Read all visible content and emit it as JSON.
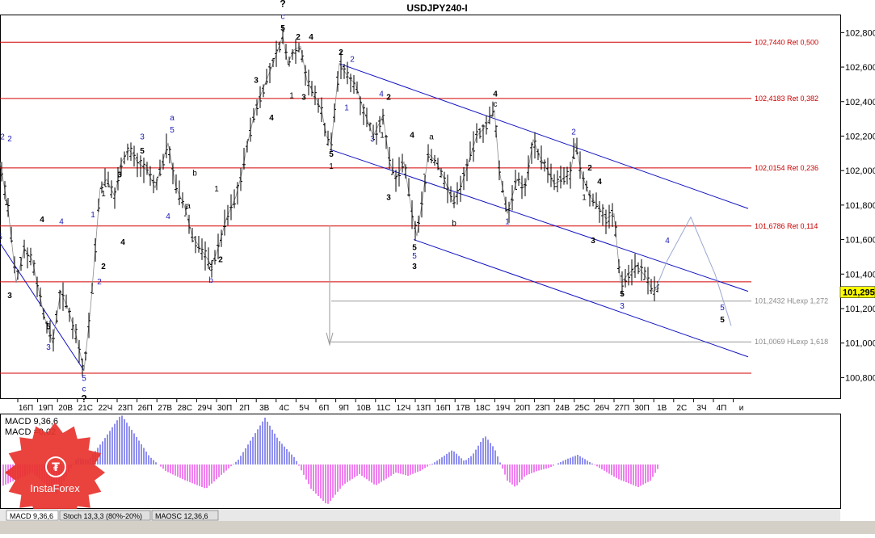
{
  "window": {
    "title": "USDJPY240-I",
    "macd_readout_1": "MACD 9,36,6",
    "macd_readout_2": "MACD =0,02",
    "watermark": "InstaForex",
    "tabs": [
      "MACD 9,36,6",
      "Stoch 13,3,3 (80%-20%)",
      "MAOSC 12,36,6"
    ],
    "active_tab": 0
  },
  "colors": {
    "fib_line": "#d40000",
    "fib_label": "#cc0000",
    "ext_line": "#9a9a9a",
    "ext_label": "#8a8a8a",
    "channel": "#1010c0",
    "wave_black": "#000000",
    "wave_blue": "#1a1ab4",
    "forecast": "#9aa8d0",
    "hist_pos": "#2020e0",
    "hist_neg": "#e000e0",
    "price_box": "#ffff00",
    "candle": "#000000"
  },
  "chart_data": {
    "type": "candlestick",
    "symbol": "USDJPY240-I",
    "ylim": [
      100.68,
      102.9
    ],
    "yticks": [
      "102,800",
      "102,600",
      "102,400",
      "102,200",
      "102,000",
      "101,800",
      "101,600",
      "101,400",
      "101,200",
      "101,000",
      "100,800"
    ],
    "ytick_values": [
      102.8,
      102.6,
      102.4,
      102.2,
      102.0,
      101.8,
      101.6,
      101.4,
      101.2,
      101.0,
      100.8
    ],
    "current_price": "101,295",
    "current_price_value": 101.295,
    "x_labels": [
      "16П",
      "19П",
      "20В",
      "21С",
      "22Ч",
      "23П",
      "26П",
      "27В",
      "28С",
      "29Ч",
      "30П",
      "2П",
      "3В",
      "4С",
      "5Ч",
      "6П",
      "9П",
      "10В",
      "11С",
      "12Ч",
      "13П",
      "16П",
      "17В",
      "18С",
      "19Ч",
      "20П",
      "23П",
      "24В",
      "25С",
      "26Ч",
      "27П",
      "30П",
      "1В",
      "2С",
      "3Ч",
      "4П",
      "и"
    ],
    "bar_count": 340,
    "price_path": [
      [
        0,
        102.05
      ],
      [
        10,
        101.78
      ],
      [
        20,
        101.35
      ],
      [
        30,
        101.55
      ],
      [
        40,
        101.48
      ],
      [
        55,
        101.15
      ],
      [
        65,
        101.0
      ],
      [
        75,
        101.3
      ],
      [
        84,
        101.2
      ],
      [
        94,
        101.05
      ],
      [
        104,
        100.84
      ],
      [
        112,
        101.2
      ],
      [
        118,
        101.55
      ],
      [
        124,
        101.9
      ],
      [
        132,
        101.95
      ],
      [
        142,
        101.85
      ],
      [
        150,
        102.05
      ],
      [
        160,
        102.12
      ],
      [
        170,
        102.05
      ],
      [
        182,
        102.0
      ],
      [
        192,
        101.9
      ],
      [
        208,
        102.16
      ],
      [
        218,
        101.9
      ],
      [
        228,
        101.8
      ],
      [
        238,
        101.62
      ],
      [
        248,
        101.55
      ],
      [
        262,
        101.45
      ],
      [
        270,
        101.55
      ],
      [
        280,
        101.72
      ],
      [
        292,
        101.85
      ],
      [
        300,
        102.0
      ],
      [
        306,
        102.15
      ],
      [
        316,
        102.35
      ],
      [
        326,
        102.48
      ],
      [
        338,
        102.62
      ],
      [
        350,
        102.78
      ],
      [
        356,
        102.62
      ],
      [
        364,
        102.7
      ],
      [
        372,
        102.72
      ],
      [
        380,
        102.52
      ],
      [
        388,
        102.45
      ],
      [
        398,
        102.35
      ],
      [
        404,
        102.2
      ],
      [
        410,
        102.15
      ],
      [
        420,
        102.62
      ],
      [
        430,
        102.55
      ],
      [
        440,
        102.5
      ],
      [
        450,
        102.35
      ],
      [
        462,
        102.2
      ],
      [
        474,
        102.32
      ],
      [
        482,
        102.05
      ],
      [
        490,
        101.95
      ],
      [
        500,
        102.05
      ],
      [
        510,
        101.75
      ],
      [
        516,
        101.62
      ],
      [
        522,
        101.8
      ],
      [
        530,
        102.1
      ],
      [
        540,
        102.05
      ],
      [
        550,
        101.95
      ],
      [
        560,
        101.82
      ],
      [
        570,
        101.9
      ],
      [
        580,
        102.05
      ],
      [
        590,
        102.2
      ],
      [
        600,
        102.25
      ],
      [
        612,
        102.35
      ],
      [
        618,
        102.0
      ],
      [
        628,
        101.75
      ],
      [
        640,
        101.95
      ],
      [
        650,
        101.9
      ],
      [
        660,
        102.18
      ],
      [
        668,
        102.08
      ],
      [
        676,
        102.02
      ],
      [
        686,
        101.92
      ],
      [
        696,
        101.95
      ],
      [
        706,
        101.98
      ],
      [
        712,
        102.16
      ],
      [
        720,
        101.98
      ],
      [
        730,
        101.85
      ],
      [
        740,
        101.8
      ],
      [
        750,
        101.72
      ],
      [
        760,
        101.75
      ],
      [
        768,
        101.35
      ],
      [
        778,
        101.4
      ],
      [
        788,
        101.45
      ],
      [
        800,
        101.38
      ],
      [
        808,
        101.3
      ],
      [
        816,
        101.32
      ]
    ],
    "fib_levels": [
      {
        "value": 102.744,
        "label": "102,7440 Ret 0,500"
      },
      {
        "value": 102.4183,
        "label": "102,4183 Ret 0,382"
      },
      {
        "value": 102.0154,
        "label": "102,0154 Ret 0,236"
      },
      {
        "value": 101.6786,
        "label": "101,6786 Ret 0,114"
      },
      {
        "value": 101.355,
        "label": ""
      },
      {
        "value": 100.825,
        "label": ""
      }
    ],
    "extension_levels": [
      {
        "value": 101.2432,
        "label": "101,2432 HLexp 1,272"
      },
      {
        "value": 101.0069,
        "label": "101,0069 HLexp 1,618"
      }
    ],
    "channel_lines": [
      {
        "x1": 420,
        "y1": 102.62,
        "x2": 926,
        "y2": 101.78
      },
      {
        "x1": 410,
        "y1": 102.12,
        "x2": 926,
        "y2": 101.3
      },
      {
        "x1": 512,
        "y1": 101.6,
        "x2": 926,
        "y2": 100.92
      },
      {
        "x1": 0,
        "y1": 101.58,
        "x2": 104,
        "y2": 100.84
      }
    ],
    "forecast_path": [
      [
        812,
        101.32
      ],
      [
        826,
        101.48
      ],
      [
        855,
        101.73
      ],
      [
        885,
        101.4
      ],
      [
        905,
        101.1
      ]
    ],
    "wave_labels": [
      {
        "text": "2",
        "x": 3,
        "y": 102.18,
        "c": "blue"
      },
      {
        "text": "2",
        "x": 12,
        "y": 102.17,
        "c": "blue"
      },
      {
        "text": "1",
        "x": 8,
        "y": 101.8,
        "c": "black"
      },
      {
        "text": "5",
        "x": 0,
        "y": 101.6,
        "c": "blue"
      },
      {
        "text": "3",
        "x": 12,
        "y": 101.26,
        "c": "black"
      },
      {
        "text": "4",
        "x": 52,
        "y": 101.7,
        "c": "black"
      },
      {
        "text": "4",
        "x": 76,
        "y": 101.69,
        "c": "blue"
      },
      {
        "text": "5",
        "x": 60,
        "y": 101.08,
        "c": "black"
      },
      {
        "text": "3",
        "x": 60,
        "y": 100.96,
        "c": "blue"
      },
      {
        "text": "5",
        "x": 104,
        "y": 100.78,
        "c": "blue"
      },
      {
        "text": "c",
        "x": 104,
        "y": 100.72,
        "c": "blue"
      },
      {
        "text": "?",
        "x": 104,
        "y": 100.66,
        "c": "black"
      },
      {
        "text": "1",
        "x": 115,
        "y": 101.73,
        "c": "blue"
      },
      {
        "text": "2",
        "x": 123,
        "y": 101.34,
        "c": "blue"
      },
      {
        "text": "1",
        "x": 128,
        "y": 101.85,
        "c": "black"
      },
      {
        "text": "2",
        "x": 128,
        "y": 101.43,
        "c": "black"
      },
      {
        "text": "3",
        "x": 148,
        "y": 101.96,
        "c": "black"
      },
      {
        "text": "4",
        "x": 152,
        "y": 101.57,
        "c": "black"
      },
      {
        "text": "3",
        "x": 176,
        "y": 102.18,
        "c": "blue"
      },
      {
        "text": "5",
        "x": 176,
        "y": 102.1,
        "c": "black"
      },
      {
        "text": "a",
        "x": 213,
        "y": 102.29,
        "c": "blue"
      },
      {
        "text": "5",
        "x": 213,
        "y": 102.22,
        "c": "blue"
      },
      {
        "text": "4",
        "x": 208,
        "y": 101.72,
        "c": "blue"
      },
      {
        "text": "a",
        "x": 233,
        "y": 101.78,
        "c": "black"
      },
      {
        "text": "b",
        "x": 241,
        "y": 101.97,
        "c": "black"
      },
      {
        "text": "1",
        "x": 268,
        "y": 101.88,
        "c": "black"
      },
      {
        "text": "2",
        "x": 273,
        "y": 101.47,
        "c": "black"
      },
      {
        "text": "c",
        "x": 261,
        "y": 101.42,
        "c": "black"
      },
      {
        "text": "b",
        "x": 261,
        "y": 101.35,
        "c": "blue"
      },
      {
        "text": "3",
        "x": 317,
        "y": 102.51,
        "c": "black"
      },
      {
        "text": "4",
        "x": 336,
        "y": 102.29,
        "c": "black"
      },
      {
        "text": "?",
        "x": 350,
        "y": 102.95,
        "c": "black"
      },
      {
        "text": "c",
        "x": 350,
        "y": 102.88,
        "c": "blue"
      },
      {
        "text": "5",
        "x": 350,
        "y": 102.81,
        "c": "black"
      },
      {
        "text": "2",
        "x": 369,
        "y": 102.76,
        "c": "black"
      },
      {
        "text": "4",
        "x": 385,
        "y": 102.76,
        "c": "black"
      },
      {
        "text": "1",
        "x": 361,
        "y": 102.42,
        "c": "black"
      },
      {
        "text": "3",
        "x": 376,
        "y": 102.41,
        "c": "black"
      },
      {
        "text": "2",
        "x": 422,
        "y": 102.67,
        "c": "black"
      },
      {
        "text": "2",
        "x": 436,
        "y": 102.63,
        "c": "blue"
      },
      {
        "text": "1",
        "x": 429,
        "y": 102.35,
        "c": "blue"
      },
      {
        "text": "5",
        "x": 410,
        "y": 102.08,
        "c": "black"
      },
      {
        "text": "1",
        "x": 410,
        "y": 102.01,
        "c": "black"
      },
      {
        "text": "4",
        "x": 472,
        "y": 102.43,
        "c": "blue"
      },
      {
        "text": "2",
        "x": 481,
        "y": 102.41,
        "c": "black"
      },
      {
        "text": "1",
        "x": 473,
        "y": 102.19,
        "c": "black"
      },
      {
        "text": "3",
        "x": 461,
        "y": 102.17,
        "c": "blue"
      },
      {
        "text": "4",
        "x": 510,
        "y": 102.19,
        "c": "black"
      },
      {
        "text": "3",
        "x": 481,
        "y": 101.83,
        "c": "black"
      },
      {
        "text": "a",
        "x": 534,
        "y": 102.18,
        "c": "black"
      },
      {
        "text": "5",
        "x": 513,
        "y": 101.54,
        "c": "black"
      },
      {
        "text": "5",
        "x": 513,
        "y": 101.49,
        "c": "blue"
      },
      {
        "text": "3",
        "x": 513,
        "y": 101.43,
        "c": "black"
      },
      {
        "text": "b",
        "x": 562,
        "y": 101.68,
        "c": "black"
      },
      {
        "text": "4",
        "x": 613,
        "y": 102.43,
        "c": "black"
      },
      {
        "text": "c",
        "x": 613,
        "y": 102.37,
        "c": "black"
      },
      {
        "text": "1",
        "x": 628,
        "y": 101.69,
        "c": "blue"
      },
      {
        "text": "2",
        "x": 710,
        "y": 102.21,
        "c": "blue"
      },
      {
        "text": "2",
        "x": 730,
        "y": 102.0,
        "c": "black"
      },
      {
        "text": "4",
        "x": 742,
        "y": 101.92,
        "c": "black"
      },
      {
        "text": "1",
        "x": 723,
        "y": 101.83,
        "c": "black"
      },
      {
        "text": "3",
        "x": 734,
        "y": 101.58,
        "c": "black"
      },
      {
        "text": "4",
        "x": 826,
        "y": 101.58,
        "c": "blue"
      },
      {
        "text": "5",
        "x": 770,
        "y": 101.27,
        "c": "black"
      },
      {
        "text": "3",
        "x": 770,
        "y": 101.2,
        "c": "blue"
      },
      {
        "text": "5",
        "x": 894,
        "y": 101.19,
        "c": "blue"
      },
      {
        "text": "5",
        "x": 894,
        "y": 101.12,
        "c": "black"
      }
    ]
  }
}
